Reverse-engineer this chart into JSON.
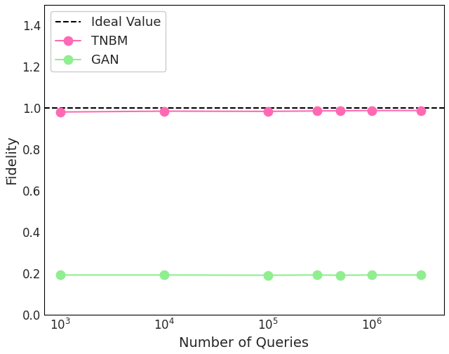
{
  "x_values": [
    1000,
    10000,
    100000,
    300000,
    500000,
    1000000,
    3000000
  ],
  "tnbm_values": [
    0.981,
    0.985,
    0.984,
    0.986,
    0.987,
    0.988,
    0.988
  ],
  "gan_values": [
    0.191,
    0.191,
    0.19,
    0.191,
    0.19,
    0.191,
    0.191
  ],
  "ideal_value": 1.0,
  "ideal_label": "Ideal Value",
  "tnbm_label": "TNBM",
  "gan_label": "GAN",
  "xlabel": "Number of Queries",
  "ylabel": "Fidelity",
  "ylim": [
    0.0,
    1.5
  ],
  "yticks": [
    0.0,
    0.2,
    0.4,
    0.6,
    0.8,
    1.0,
    1.2,
    1.4
  ],
  "xlim_log": [
    700,
    5000000
  ],
  "tnbm_color": "#FF69B4",
  "gan_color": "#90EE90",
  "ideal_color": "#000000",
  "marker_size": 9,
  "linewidth": 1.5,
  "legend_fontsize": 13,
  "axis_label_fontsize": 14,
  "tick_fontsize": 12
}
